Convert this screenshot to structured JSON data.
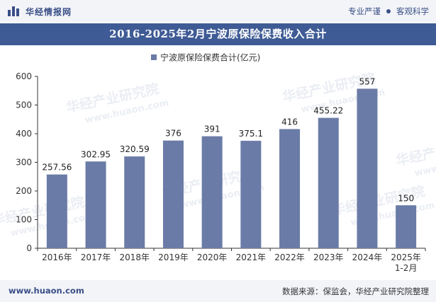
{
  "header": {
    "brand": "华经情报网",
    "tag_left": "专业严谨",
    "tag_right": "客观科学"
  },
  "title": "2016-2025年2月宁波原保险保费收入合计",
  "footer": {
    "website": "www.huaon.com",
    "source": "数据来源：保监会，华经产业研究院整理"
  },
  "watermark": {
    "text": "华经产业研究院",
    "url": "www.huaon.com"
  },
  "colors": {
    "bar": "#6b7ba7",
    "title_bg": "#3f5b95",
    "brand": "#3a4f86"
  },
  "chart_data": {
    "type": "bar",
    "categories": [
      "2016年",
      "2017年",
      "2018年",
      "2019年",
      "2020年",
      "2021年",
      "2022年",
      "2023年",
      "2024年",
      "2025年\n1-2月"
    ],
    "series": [
      {
        "name": "宁波原保险保费合计(亿元)",
        "values": [
          257.56,
          302.95,
          320.59,
          376,
          391,
          375.1,
          416,
          455.22,
          557,
          150
        ],
        "labels": [
          "257.56",
          "302.95",
          "320.59",
          "376",
          "391",
          "375.1",
          "416",
          "455.22",
          "557",
          "150"
        ]
      }
    ],
    "ylim": [
      0,
      600
    ],
    "yticks": [
      0,
      100,
      200,
      300,
      400,
      500,
      600
    ],
    "legend": "top-center",
    "grid": false
  }
}
